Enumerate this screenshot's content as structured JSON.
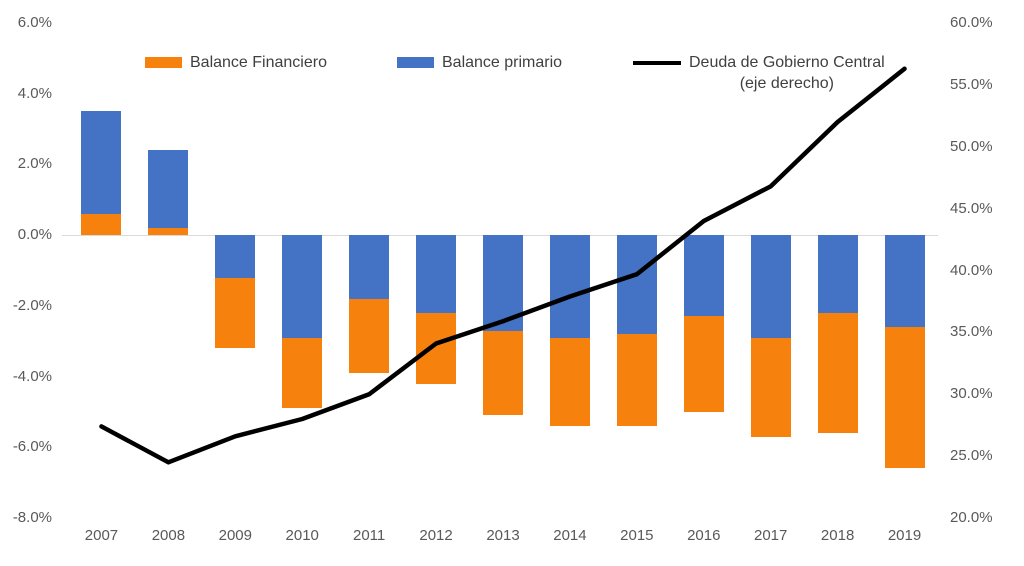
{
  "chart_data": {
    "type": "combo",
    "title": "",
    "categories": [
      "2007",
      "2008",
      "2009",
      "2010",
      "2011",
      "2012",
      "2013",
      "2014",
      "2015",
      "2016",
      "2017",
      "2018",
      "2019"
    ],
    "series": [
      {
        "name": "Balance Financiero",
        "type": "bar",
        "axis": "left",
        "color": "#F6820D",
        "values": [
          0.6,
          0.2,
          -3.2,
          -4.9,
          -3.9,
          -4.2,
          -5.1,
          -5.4,
          -5.4,
          -5.0,
          -5.7,
          -5.6,
          -6.6
        ]
      },
      {
        "name": "Balance primario",
        "type": "bar",
        "axis": "left",
        "color": "#4472C4",
        "values": [
          3.5,
          2.4,
          -1.2,
          -2.9,
          -1.8,
          -2.2,
          -2.7,
          -2.9,
          -2.8,
          -2.3,
          -2.9,
          -2.2,
          -2.6
        ]
      },
      {
        "name": "Deuda de Gobierno Central (eje derecho)",
        "type": "line",
        "axis": "right",
        "color": "#000000",
        "values": [
          27.4,
          24.5,
          26.6,
          28.0,
          30.0,
          34.1,
          35.9,
          37.9,
          39.7,
          44.0,
          46.8,
          52.0,
          56.3
        ]
      }
    ],
    "left_axis": {
      "min": -8,
      "max": 6,
      "tick_values": [
        6,
        4,
        2,
        0,
        -2,
        -4,
        -6,
        -8
      ],
      "tick_labels": [
        "6.0%",
        "4.0%",
        "2.0%",
        "0.0%",
        "-2.0%",
        "-4.0%",
        "-6.0%",
        "-8.0%"
      ]
    },
    "right_axis": {
      "min": 20,
      "max": 60,
      "tick_values": [
        60,
        55,
        50,
        45,
        40,
        35,
        30,
        25,
        20
      ],
      "tick_labels": [
        "60.0%",
        "55.0%",
        "50.0%",
        "45.0%",
        "40.0%",
        "35.0%",
        "30.0%",
        "25.0%",
        "20.0%"
      ]
    },
    "grid": "zero-line-only",
    "legend_position": "top",
    "bar_render": "both series drawn as full bars from zero, overlapped; shorter bar in front"
  },
  "legend": {
    "financiero_label": "Balance Financiero",
    "primario_label": "Balance primario",
    "deuda_label_line1": "Deuda de Gobierno Central",
    "deuda_label_line2": "(eje derecho)"
  },
  "colors": {
    "orange": "#F6820D",
    "blue": "#4472C4",
    "line": "#000000",
    "gridline": "#D9D9D9",
    "axis_text": "#595959",
    "legend_text": "#404040",
    "background": "#FFFFFF"
  }
}
